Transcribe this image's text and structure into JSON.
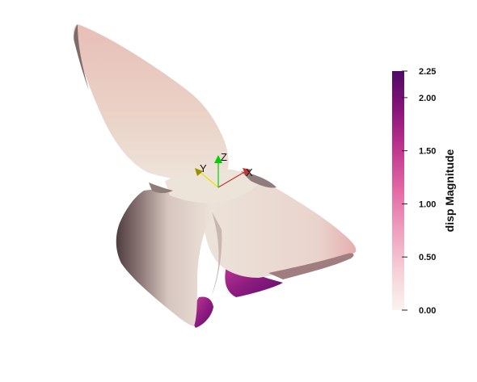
{
  "scene": {
    "background": "#ffffff",
    "surface_colors": {
      "base": "#e8ddd4",
      "pink": "#e7b7b0",
      "shade": "#b9a6a3",
      "dark_shade": "#5e4e4e",
      "magenta": "#9a2a8a",
      "deep_magenta": "#6b1070"
    }
  },
  "orientation_axes": {
    "x_label": "X",
    "y_label": "Y",
    "z_label": "Z",
    "x_color": "#c83232",
    "y_color": "#e6e600",
    "z_color": "#00d000"
  },
  "colorbar": {
    "title": "disp Magnitude",
    "min": 0.0,
    "max": 2.25,
    "ticks": [
      "2.25",
      "2.00",
      "1.50",
      "1.00",
      "0.50",
      "0.00"
    ],
    "tick_values": [
      2.25,
      2.0,
      1.5,
      1.0,
      0.5,
      0.0
    ],
    "colormap": [
      "#fbf3ef",
      "#f6cfd6",
      "#ef9fbf",
      "#e36aa6",
      "#c2378f",
      "#8a157a",
      "#4e0a66"
    ]
  }
}
